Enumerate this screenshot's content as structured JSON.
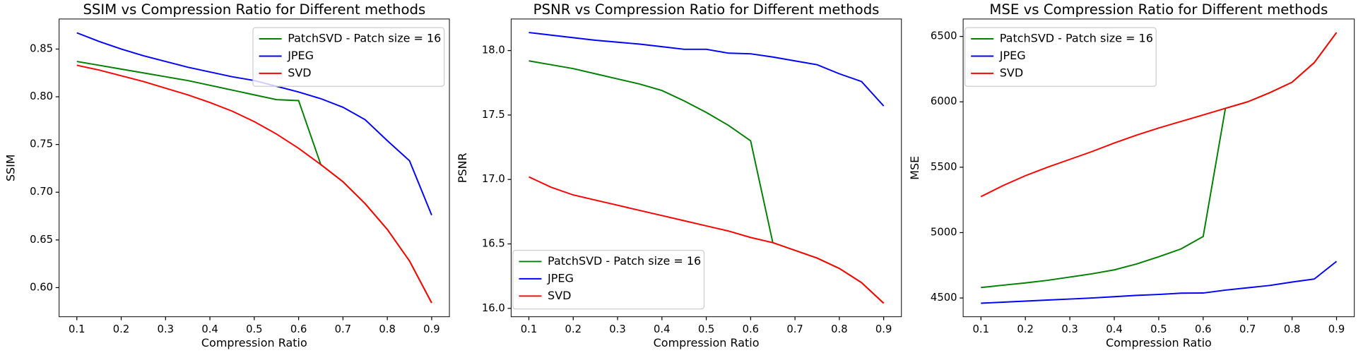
{
  "chart_data": [
    {
      "type": "line",
      "title": "SSIM vs Compression Ratio for Different methods",
      "xlabel": "Compression Ratio",
      "ylabel": "SSIM",
      "x": [
        0.1,
        0.15,
        0.2,
        0.25,
        0.3,
        0.35,
        0.4,
        0.45,
        0.5,
        0.55,
        0.6,
        0.65,
        0.7,
        0.75,
        0.8,
        0.85,
        0.9
      ],
      "series": [
        {
          "name": "PatchSVD - Patch size = 16",
          "color": "green",
          "values": [
            0.837,
            0.833,
            0.829,
            0.825,
            0.821,
            0.817,
            0.812,
            0.807,
            0.802,
            0.797,
            0.796,
            0.729,
            0.711,
            0.688,
            0.661,
            0.628,
            0.584
          ]
        },
        {
          "name": "JPEG",
          "color": "blue",
          "values": [
            0.867,
            0.858,
            0.85,
            0.843,
            0.837,
            0.831,
            0.826,
            0.821,
            0.817,
            0.811,
            0.805,
            0.798,
            0.789,
            0.776,
            0.754,
            0.733,
            0.676
          ]
        },
        {
          "name": "SVD",
          "color": "red",
          "values": [
            0.833,
            0.828,
            0.822,
            0.816,
            0.809,
            0.802,
            0.794,
            0.785,
            0.774,
            0.761,
            0.746,
            0.729,
            0.711,
            0.688,
            0.661,
            0.628,
            0.584
          ]
        }
      ],
      "xlim": [
        0.06,
        0.94
      ],
      "ylim": [
        0.5695,
        0.8815
      ],
      "xticks": [
        0.1,
        0.2,
        0.3,
        0.4,
        0.5,
        0.6,
        0.7,
        0.8,
        0.9
      ],
      "yticks": [
        {
          "value": 0.6,
          "label": "0.60"
        },
        0.65,
        {
          "value": 0.7,
          "label": "0.70"
        },
        0.75,
        {
          "value": 0.8,
          "label": "0.80"
        },
        0.85
      ],
      "legend": "upper right"
    },
    {
      "type": "line",
      "title": "PSNR vs Compression Ratio for Different methods",
      "xlabel": "Compression Ratio",
      "ylabel": "PSNR",
      "x": [
        0.1,
        0.15,
        0.2,
        0.25,
        0.3,
        0.35,
        0.4,
        0.45,
        0.5,
        0.55,
        0.6,
        0.65,
        0.7,
        0.75,
        0.8,
        0.85,
        0.9
      ],
      "series": [
        {
          "name": "PatchSVD - Patch size = 16",
          "color": "green",
          "values": [
            17.92,
            17.89,
            17.86,
            17.82,
            17.78,
            17.74,
            17.69,
            17.61,
            17.52,
            17.42,
            17.3,
            16.51,
            16.45,
            16.39,
            16.31,
            16.2,
            16.04
          ]
        },
        {
          "name": "JPEG",
          "color": "blue",
          "values": [
            18.14,
            18.12,
            18.1,
            18.08,
            18.065,
            18.05,
            18.03,
            18.01,
            18.01,
            17.98,
            17.975,
            17.95,
            17.92,
            17.89,
            17.82,
            17.76,
            17.57
          ]
        },
        {
          "name": "SVD",
          "color": "red",
          "values": [
            17.02,
            16.94,
            16.88,
            16.84,
            16.8,
            16.76,
            16.72,
            16.68,
            16.64,
            16.6,
            16.55,
            16.51,
            16.45,
            16.39,
            16.31,
            16.2,
            16.04
          ]
        }
      ],
      "xlim": [
        0.06,
        0.94
      ],
      "ylim": [
        15.935,
        18.245
      ],
      "xticks": [
        0.1,
        0.2,
        0.3,
        0.4,
        0.5,
        0.6,
        0.7,
        0.8,
        0.9
      ],
      "yticks": [
        {
          "value": 16,
          "label": "16.0"
        },
        16.5,
        {
          "value": 17,
          "label": "17.0"
        },
        17.5,
        {
          "value": 18,
          "label": "18.0"
        }
      ],
      "legend": "lower left"
    },
    {
      "type": "line",
      "title": "MSE vs Compression Ratio for Different methods",
      "xlabel": "Compression Ratio",
      "ylabel": "MSE",
      "x": [
        0.1,
        0.15,
        0.2,
        0.25,
        0.3,
        0.35,
        0.4,
        0.45,
        0.5,
        0.55,
        0.6,
        0.65,
        0.7,
        0.75,
        0.8,
        0.85,
        0.9
      ],
      "series": [
        {
          "name": "PatchSVD - Patch size = 16",
          "color": "green",
          "values": [
            4580,
            4598,
            4615,
            4635,
            4660,
            4685,
            4715,
            4760,
            4815,
            4875,
            4970,
            5950,
            6000,
            6070,
            6150,
            6300,
            6530
          ]
        },
        {
          "name": "JPEG",
          "color": "blue",
          "values": [
            4460,
            4468,
            4476,
            4484,
            4492,
            4500,
            4510,
            4520,
            4527,
            4537,
            4538,
            4560,
            4578,
            4596,
            4622,
            4645,
            4780
          ]
        },
        {
          "name": "SVD",
          "color": "red",
          "values": [
            5275,
            5360,
            5435,
            5500,
            5560,
            5620,
            5685,
            5745,
            5800,
            5850,
            5900,
            5950,
            6000,
            6070,
            6150,
            6300,
            6530
          ]
        }
      ],
      "xlim": [
        0.06,
        0.94
      ],
      "ylim": [
        4356.5,
        6633.5
      ],
      "xticks": [
        0.1,
        0.2,
        0.3,
        0.4,
        0.5,
        0.6,
        0.7,
        0.8,
        0.9
      ],
      "yticks": [
        4500,
        5000,
        5500,
        6000,
        6500
      ],
      "legend": "upper left"
    }
  ]
}
